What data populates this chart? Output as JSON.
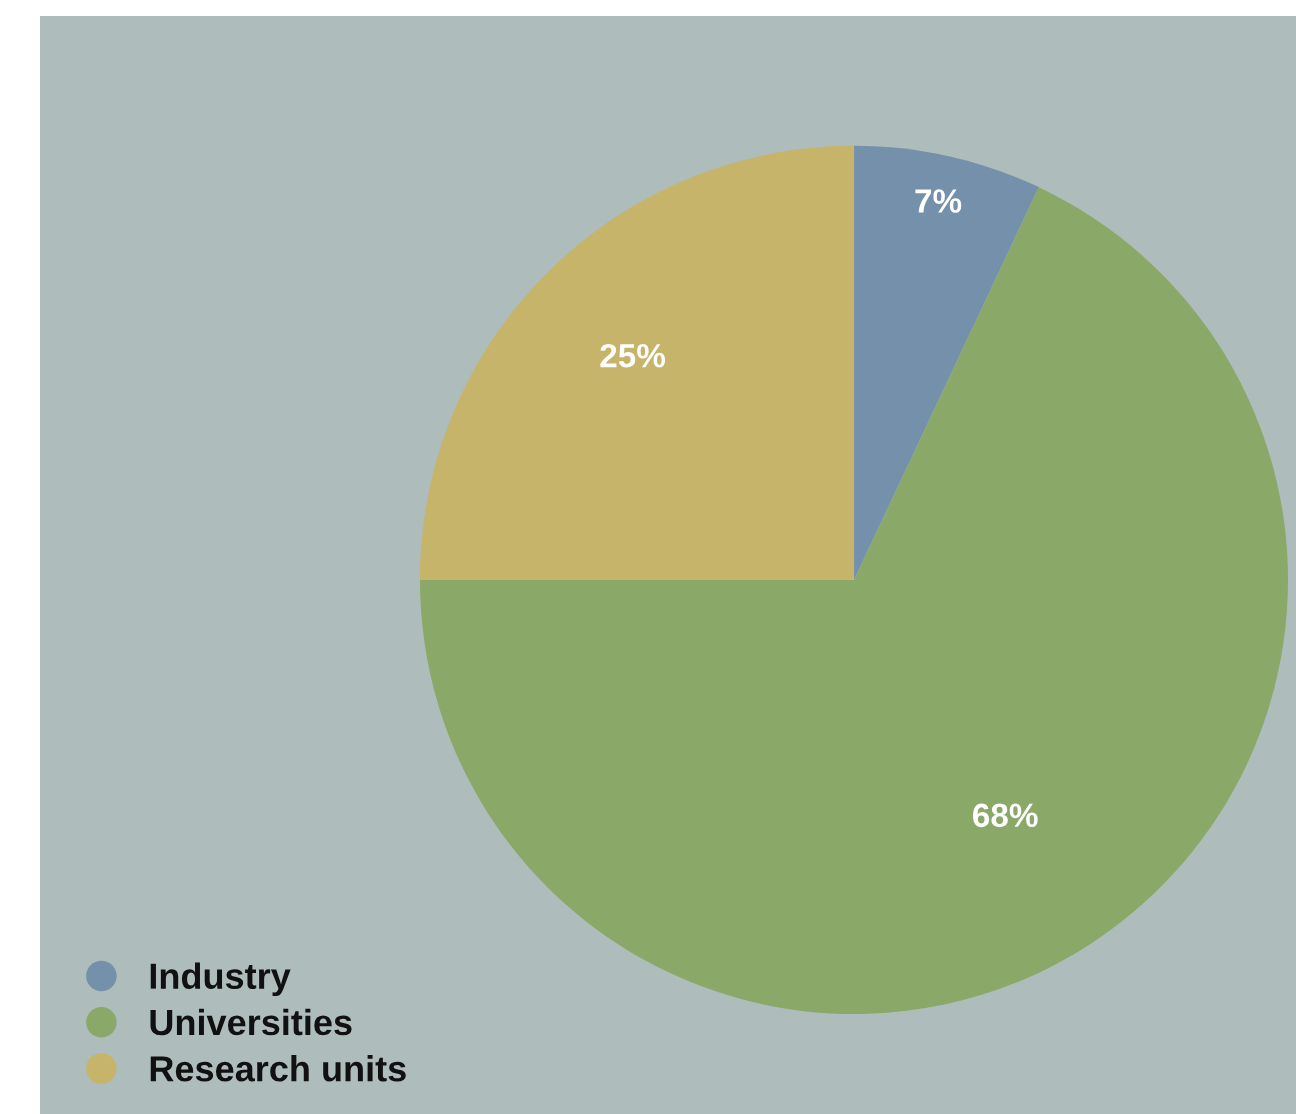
{
  "chart_data": {
    "type": "pie",
    "categories": [
      "Industry",
      "Universities",
      "Research units"
    ],
    "values": [
      7,
      68,
      25
    ],
    "colors": [
      "#7590ab",
      "#8aa868",
      "#c6b46a"
    ],
    "value_labels": [
      "7%",
      "68%",
      "25%"
    ],
    "legend": "bottom left"
  }
}
